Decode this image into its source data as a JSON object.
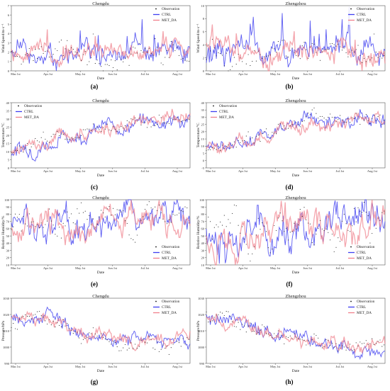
{
  "figure": {
    "captions": [
      "(a)",
      "(b)",
      "(c)",
      "(d)",
      "(e)",
      "(f)",
      "(g)",
      "(h)"
    ]
  },
  "legend_labels": [
    "Observation",
    "CTRL",
    "MET_DA"
  ],
  "colors": {
    "observation": "#111111",
    "ctrl": "#3f3ff0",
    "met_da": "#f0808c",
    "overlap": "#8a2a7c"
  },
  "chart_data": [
    {
      "id": "a",
      "type": "line",
      "title": "Chengdu",
      "xlabel": "Date",
      "ylabel": "Wind Speed/m·s⁻¹",
      "xticks": [
        "Mar.1st",
        "Apr.1st",
        "May.1st",
        "Jun.1st",
        "Jul.1st",
        "Aug.1st"
      ],
      "yticks": [
        "0",
        "1",
        "2",
        "3",
        "4",
        "5",
        "6",
        "7"
      ],
      "ylim": [
        0,
        7
      ],
      "legend": "top-right",
      "series": [
        {
          "name": "Observation",
          "style": "scatter",
          "base": 1.8,
          "amp": 1.0,
          "seed": 11
        },
        {
          "name": "CTRL",
          "base": 2.0,
          "amp": 1.1,
          "seed": 12
        },
        {
          "name": "MET_DA",
          "base": 1.9,
          "amp": 0.9,
          "seed": 13
        }
      ]
    },
    {
      "id": "b",
      "type": "line",
      "title": "Zhengzhou",
      "xlabel": "Date",
      "ylabel": "Wind Speed/m·s⁻¹",
      "xticks": [
        "Mar.1st",
        "Apr.1st",
        "May.1st",
        "Jun.1st",
        "Jul.1st",
        "Aug.1st"
      ],
      "yticks": [
        "0",
        "2",
        "4",
        "6",
        "8",
        "10"
      ],
      "ylim": [
        0,
        10
      ],
      "legend": "top-right",
      "series": [
        {
          "name": "Observation",
          "style": "scatter",
          "base": 2.6,
          "amp": 1.6,
          "seed": 21
        },
        {
          "name": "CTRL",
          "base": 3.0,
          "amp": 1.9,
          "seed": 22
        },
        {
          "name": "MET_DA",
          "base": 2.8,
          "amp": 1.7,
          "seed": 23
        }
      ]
    },
    {
      "id": "c",
      "type": "line",
      "title": "Chengdu",
      "xlabel": "Date",
      "ylabel": "Temperature/°C",
      "xticks": [
        "Mar.1st",
        "Apr.1st",
        "May.1st",
        "Jun.1st",
        "Jul.1st",
        "Aug.1st"
      ],
      "yticks": [
        "0",
        "5",
        "10",
        "15",
        "20",
        "25",
        "30",
        "35",
        "40"
      ],
      "ylim": [
        0,
        40
      ],
      "legend": "top-left",
      "trend": [
        10,
        16,
        22,
        26,
        29,
        29
      ],
      "series": [
        {
          "name": "Observation",
          "style": "scatter",
          "amp": 3.5,
          "seed": 31
        },
        {
          "name": "CTRL",
          "amp": 4.5,
          "seed": 32
        },
        {
          "name": "MET_DA",
          "amp": 4.0,
          "seed": 33
        }
      ]
    },
    {
      "id": "d",
      "type": "line",
      "title": "Zhengzhou",
      "xlabel": "Date",
      "ylabel": "Temperature/°C",
      "xticks": [
        "Mar.1st",
        "Apr.1st",
        "May.1st",
        "Jun.1st",
        "Jul.1st",
        "Aug.1st"
      ],
      "yticks": [
        "-5",
        "0",
        "5",
        "10",
        "15",
        "20",
        "25",
        "30",
        "35",
        "40"
      ],
      "ylim": [
        -5,
        40
      ],
      "legend": "top-left",
      "trend": [
        6,
        13,
        21,
        27,
        29,
        28
      ],
      "series": [
        {
          "name": "Observation",
          "style": "scatter",
          "amp": 4.5,
          "seed": 41
        },
        {
          "name": "CTRL",
          "amp": 5.0,
          "seed": 42
        },
        {
          "name": "MET_DA",
          "amp": 4.6,
          "seed": 43
        }
      ]
    },
    {
      "id": "e",
      "type": "line",
      "title": "Chengdu",
      "xlabel": "Date",
      "ylabel": "Relative Humidity/%",
      "xticks": [
        "Mar.1st",
        "Apr.1st",
        "May.1st",
        "Jun.1st",
        "Jul.1st",
        "Aug.1st"
      ],
      "yticks": [
        "10",
        "20",
        "30",
        "40",
        "50",
        "60",
        "70",
        "80",
        "90",
        "100"
      ],
      "ylim": [
        10,
        100
      ],
      "legend": "bottom-right",
      "trend": [
        68,
        64,
        66,
        72,
        76,
        78
      ],
      "series": [
        {
          "name": "Observation",
          "style": "scatter",
          "amp": 16,
          "seed": 51
        },
        {
          "name": "CTRL",
          "amp": 20,
          "seed": 52
        },
        {
          "name": "MET_DA",
          "amp": 18,
          "seed": 53
        }
      ]
    },
    {
      "id": "f",
      "type": "line",
      "title": "Zhengzhou",
      "xlabel": "Date",
      "ylabel": "Relative Humidity/%",
      "xticks": [
        "Mar.1st",
        "Apr.1st",
        "May.1st",
        "Jun.1st",
        "Jul.1st",
        "Aug.1st"
      ],
      "yticks": [
        "10",
        "20",
        "30",
        "40",
        "50",
        "60",
        "70",
        "80",
        "90",
        "100"
      ],
      "ylim": [
        10,
        100
      ],
      "legend": "bottom-right",
      "trend": [
        50,
        48,
        52,
        58,
        66,
        72
      ],
      "series": [
        {
          "name": "Observation",
          "style": "scatter",
          "amp": 22,
          "seed": 61
        },
        {
          "name": "CTRL",
          "amp": 24,
          "seed": 62
        },
        {
          "name": "MET_DA",
          "amp": 22,
          "seed": 63
        }
      ]
    },
    {
      "id": "g",
      "type": "line",
      "title": "Chengdu",
      "xlabel": "Date",
      "ylabel": "Pressure/hPa",
      "xticks": [
        "Mar.1st",
        "Apr.1st",
        "May.1st",
        "Jun.1st",
        "Jul.1st",
        "Aug.1st"
      ],
      "yticks": [
        "990",
        "1000",
        "1010",
        "1020",
        "1030"
      ],
      "ylim": [
        990,
        1030
      ],
      "legend": "top-right",
      "trend": [
        1016,
        1017,
        1008,
        1005,
        1003,
        1004
      ],
      "series": [
        {
          "name": "Observation",
          "style": "scatter",
          "amp": 4,
          "seed": 71
        },
        {
          "name": "CTRL",
          "amp": 4,
          "seed": 72
        },
        {
          "name": "MET_DA",
          "amp": 4,
          "seed": 73
        }
      ]
    },
    {
      "id": "h",
      "type": "line",
      "title": "Zhengzhou",
      "xlabel": "Date",
      "ylabel": "Pressure/hPa",
      "xticks": [
        "Mar.1st",
        "Apr.1st",
        "May.1st",
        "Jun.1st",
        "Jul.1st",
        "Aug.1st"
      ],
      "yticks": [
        "990",
        "1000",
        "1010",
        "1020",
        "1030"
      ],
      "ylim": [
        990,
        1030
      ],
      "legend": "top-right",
      "trend": [
        1020,
        1014,
        1008,
        1003,
        1000,
        1001
      ],
      "series": [
        {
          "name": "Observation",
          "style": "scatter",
          "amp": 4,
          "seed": 81
        },
        {
          "name": "CTRL",
          "amp": 4,
          "seed": 82
        },
        {
          "name": "MET_DA",
          "amp": 4,
          "seed": 83
        }
      ]
    }
  ]
}
